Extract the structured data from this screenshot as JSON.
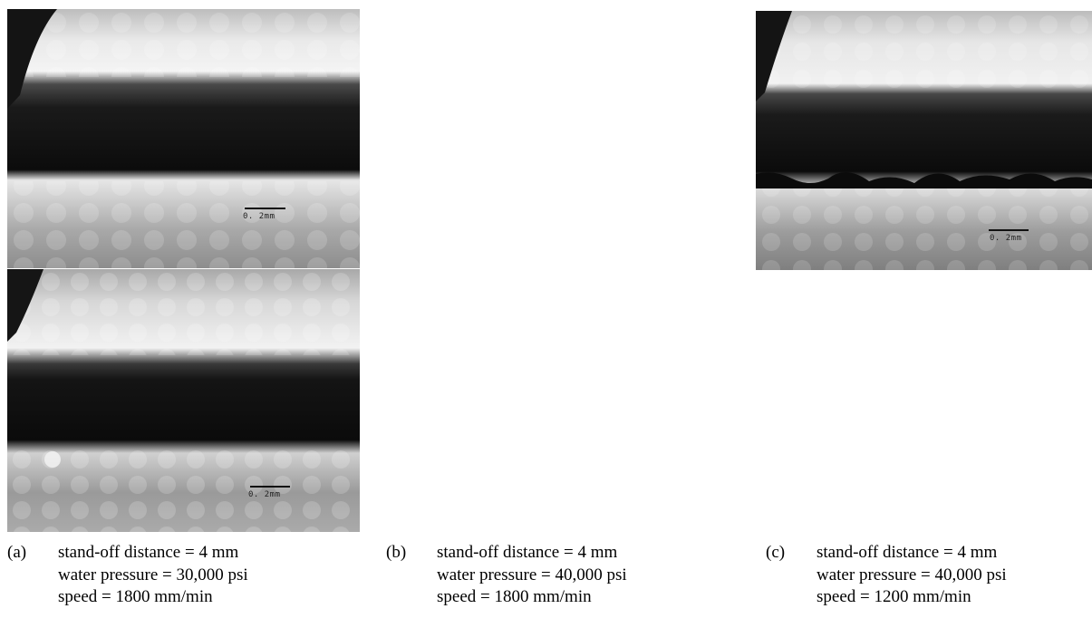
{
  "figures": [
    {
      "id": "a",
      "scale_label": "0. 2mm"
    },
    {
      "id": "a2",
      "scale_label": "0. 2mm"
    },
    {
      "id": "c",
      "scale_label": "0. 2mm"
    }
  ],
  "captions": [
    {
      "letter": "(a)",
      "standoff": "stand-off distance = 4 mm",
      "pressure": "water pressure = 30,000 psi",
      "speed": "speed = 1800 mm/min"
    },
    {
      "letter": "(b)",
      "standoff": "stand-off distance = 4 mm",
      "pressure": "water pressure = 40,000 psi",
      "speed": "speed = 1800 mm/min"
    },
    {
      "letter": "(c)",
      "standoff": "stand-off distance = 4 mm",
      "pressure": "water pressure = 40,000 psi",
      "speed": "speed = 1200 mm/min"
    }
  ]
}
